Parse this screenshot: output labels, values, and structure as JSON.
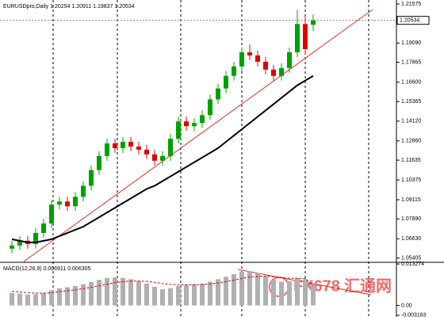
{
  "chart_data": {
    "type": "candlestick",
    "title": "EURUSDpro,Daily 1.20254 1.20911 1.19837 1.20534",
    "open": [
      1.06,
      1.062,
      1.065,
      1.063,
      1.07,
      1.076,
      1.088,
      1.09,
      1.087,
      1.093,
      1.1,
      1.11,
      1.119,
      1.127,
      1.124,
      1.128,
      1.125,
      1.123,
      1.12,
      1.116,
      1.119,
      1.13,
      1.141,
      1.138,
      1.14,
      1.145,
      1.155,
      1.162,
      1.17,
      1.176,
      1.185,
      1.183,
      1.179,
      1.174,
      1.17,
      1.175,
      1.185,
      1.203,
      1.20254
    ],
    "high": [
      1.065,
      1.068,
      1.068,
      1.073,
      1.079,
      1.091,
      1.093,
      1.093,
      1.096,
      1.103,
      1.113,
      1.122,
      1.13,
      1.13,
      1.131,
      1.131,
      1.128,
      1.126,
      1.123,
      1.122,
      1.133,
      1.144,
      1.144,
      1.143,
      1.148,
      1.158,
      1.165,
      1.173,
      1.179,
      1.188,
      1.19,
      1.186,
      1.182,
      1.177,
      1.178,
      1.188,
      1.212,
      1.208,
      1.20911
    ],
    "low": [
      1.057,
      1.059,
      1.06,
      1.06,
      1.067,
      1.073,
      1.085,
      1.084,
      1.084,
      1.09,
      1.097,
      1.107,
      1.116,
      1.121,
      1.121,
      1.122,
      1.12,
      1.117,
      1.113,
      1.113,
      1.116,
      1.127,
      1.135,
      1.135,
      1.137,
      1.142,
      1.152,
      1.159,
      1.167,
      1.173,
      1.18,
      1.176,
      1.171,
      1.167,
      1.167,
      1.172,
      1.182,
      1.184,
      1.19837
    ],
    "close": [
      1.062,
      1.065,
      1.063,
      1.07,
      1.076,
      1.088,
      1.09,
      1.087,
      1.093,
      1.1,
      1.11,
      1.119,
      1.127,
      1.124,
      1.128,
      1.125,
      1.123,
      1.12,
      1.116,
      1.119,
      1.13,
      1.141,
      1.138,
      1.14,
      1.145,
      1.155,
      1.162,
      1.17,
      1.176,
      1.185,
      1.183,
      1.179,
      1.174,
      1.17,
      1.175,
      1.185,
      1.203,
      1.187,
      1.20534
    ],
    "ma": [
      1.066,
      1.065,
      1.064,
      1.064,
      1.065,
      1.066,
      1.068,
      1.07,
      1.072,
      1.074,
      1.077,
      1.08,
      1.083,
      1.086,
      1.089,
      1.092,
      1.095,
      1.098,
      1.1,
      1.103,
      1.106,
      1.109,
      1.112,
      1.115,
      1.118,
      1.121,
      1.124,
      1.128,
      1.132,
      1.136,
      1.14,
      1.144,
      1.148,
      1.152,
      1.156,
      1.16,
      1.164,
      1.167,
      1.17
    ],
    "up_color": "#00a000",
    "down_color": "#e00000",
    "ma_color": "#000000",
    "ylim": [
      1.0513,
      1.2183
    ],
    "yticks": [
      1.21575,
      {
        "value": 1.1909,
        "label": "1.19090"
      },
      1.17865,
      {
        "value": 1.166,
        "label": "1.16600"
      },
      1.15365,
      {
        "value": 1.1412,
        "label": "1.14120"
      },
      {
        "value": 1.1286,
        "label": "1.12860"
      },
      1.11635,
      1.10375,
      1.09115,
      {
        "value": 1.0789,
        "label": "1.07890"
      },
      {
        "value": 1.0663,
        "label": "1.06630"
      },
      1.05405
    ],
    "current_price": 1.20534,
    "macd_title": "MACD(12,26,9) 0.006911 0.006305",
    "macd": [
      0.004,
      0.0038,
      0.0035,
      0.0036,
      0.004,
      0.0048,
      0.0055,
      0.0058,
      0.0062,
      0.0068,
      0.0075,
      0.0082,
      0.0088,
      0.009,
      0.0088,
      0.0084,
      0.0078,
      0.007,
      0.006,
      0.0052,
      0.0055,
      0.0062,
      0.0066,
      0.0068,
      0.007,
      0.0076,
      0.0084,
      0.0092,
      0.01,
      0.0108,
      0.011,
      0.0104,
      0.0094,
      0.0082,
      0.0076,
      0.0078,
      0.0088,
      0.0084,
      0.006911
    ],
    "signal": [
      0.0045,
      0.0043,
      0.0041,
      0.0039,
      0.0039,
      0.0041,
      0.0044,
      0.0047,
      0.005,
      0.0054,
      0.0058,
      0.0063,
      0.0068,
      0.0073,
      0.0076,
      0.0078,
      0.0078,
      0.0077,
      0.0074,
      0.007,
      0.0067,
      0.0066,
      0.0066,
      0.0066,
      0.0067,
      0.0069,
      0.0072,
      0.0076,
      0.0081,
      0.0086,
      0.0091,
      0.0093,
      0.0094,
      0.0092,
      0.0089,
      0.0087,
      0.0087,
      0.0086,
      0.006305
    ],
    "macd_color": "#b0b0b0",
    "signal_color": "#e00000",
    "y2lim": [
      -0.0037,
      0.0138
    ],
    "y2ticks": [
      0.013274,
      {
        "value": 0,
        "label": "0.00"
      },
      -0.003163
    ],
    "watermark": [
      "FX678",
      "汇通网"
    ]
  }
}
